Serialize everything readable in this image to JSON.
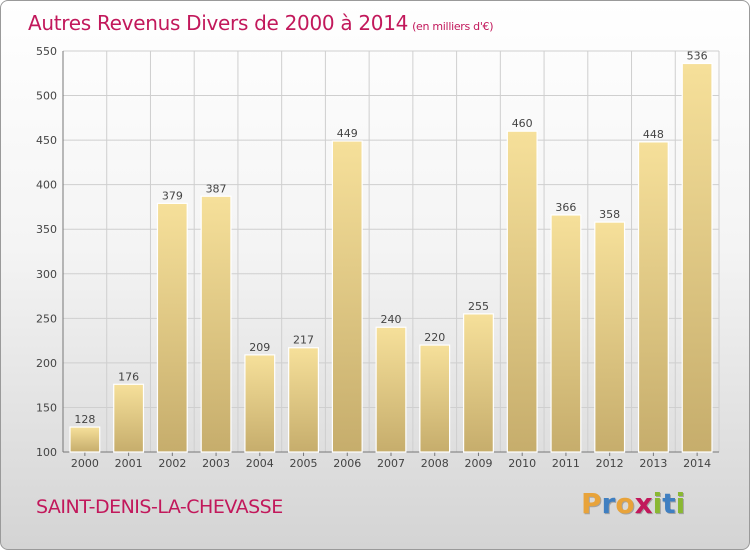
{
  "title": "Autres Revenus Divers de 2000 à 2014",
  "title_unit": "(en milliers d'€)",
  "commune": "SAINT-DENIS-LA-CHEVASSE",
  "logo": {
    "letters": [
      "P",
      "r",
      "o",
      "x",
      "i",
      "t",
      "i"
    ],
    "colors": [
      "#e8a33a",
      "#3f7fc1",
      "#e8a33a",
      "#c2185b",
      "#8ab832",
      "#3f7fc1",
      "#8ab832"
    ]
  },
  "colors": {
    "bar_light": "#f6e09a",
    "bar_dark": "#c6ad6c",
    "grid": "#cfcfcf",
    "title": "#c2185b"
  },
  "chart_data": {
    "type": "bar",
    "categories": [
      "2000",
      "2001",
      "2002",
      "2003",
      "2004",
      "2005",
      "2006",
      "2007",
      "2008",
      "2009",
      "2010",
      "2011",
      "2012",
      "2013",
      "2014"
    ],
    "values": [
      128,
      176,
      379,
      387,
      209,
      217,
      449,
      240,
      220,
      255,
      460,
      366,
      358,
      448,
      536
    ],
    "yticks": [
      100,
      150,
      200,
      250,
      300,
      350,
      400,
      450,
      500,
      550
    ],
    "ylim": [
      100,
      550
    ],
    "grid": true
  }
}
